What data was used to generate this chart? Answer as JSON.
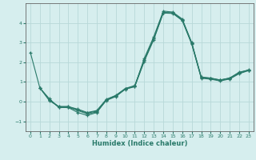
{
  "xlabel": "Humidex (Indice chaleur)",
  "bg_color": "#d6eeee",
  "line_color": "#2a7a6a",
  "grid_color": "#b8d8d8",
  "xlim": [
    -0.5,
    23.5
  ],
  "ylim": [
    -1.5,
    5.0
  ],
  "yticks": [
    -1,
    0,
    1,
    2,
    3,
    4
  ],
  "xticks": [
    0,
    1,
    2,
    3,
    4,
    5,
    6,
    7,
    8,
    9,
    10,
    11,
    12,
    13,
    14,
    15,
    16,
    17,
    18,
    19,
    20,
    21,
    22,
    23
  ],
  "tick_color": "#2a7a6a",
  "lines": [
    {
      "x": [
        0,
        1,
        2,
        3,
        4,
        5,
        6,
        7,
        8,
        9,
        10,
        11,
        12,
        13,
        14,
        15,
        16,
        17,
        18,
        19,
        20,
        21,
        22,
        23
      ],
      "y": [
        2.5,
        0.7,
        0.15,
        -0.3,
        -0.3,
        -0.55,
        -0.7,
        -0.55,
        0.08,
        0.28,
        0.65,
        0.78,
        2.2,
        3.3,
        4.6,
        4.55,
        4.2,
        3.0,
        1.25,
        1.2,
        1.1,
        1.2,
        1.5,
        1.6
      ]
    },
    {
      "x": [
        1,
        2,
        3,
        4,
        5,
        6,
        7,
        8,
        9,
        10,
        11,
        12,
        13,
        14,
        15,
        16,
        17,
        18,
        19,
        20,
        21,
        22,
        23
      ],
      "y": [
        0.7,
        0.1,
        -0.28,
        -0.28,
        -0.45,
        -0.62,
        -0.52,
        0.06,
        0.26,
        0.63,
        0.76,
        2.05,
        3.15,
        4.5,
        4.48,
        4.12,
        2.92,
        1.19,
        1.14,
        1.05,
        1.15,
        1.42,
        1.58
      ]
    },
    {
      "x": [
        1,
        2,
        3,
        4,
        5,
        6,
        7,
        8,
        9,
        10,
        11,
        12,
        13,
        14,
        15,
        16,
        17,
        18,
        19,
        20,
        21,
        22,
        23
      ],
      "y": [
        0.7,
        0.05,
        -0.25,
        -0.25,
        -0.42,
        -0.58,
        -0.48,
        0.1,
        0.3,
        0.65,
        0.8,
        2.1,
        3.2,
        4.52,
        4.5,
        4.15,
        2.95,
        1.22,
        1.17,
        1.08,
        1.18,
        1.45,
        1.6
      ]
    },
    {
      "x": [
        2,
        3,
        4,
        5,
        6,
        7,
        8,
        9,
        10,
        11,
        12,
        13,
        14,
        15,
        16,
        17,
        18,
        19,
        20,
        21,
        22,
        23
      ],
      "y": [
        0.1,
        -0.25,
        -0.25,
        -0.38,
        -0.55,
        -0.45,
        0.12,
        0.32,
        0.67,
        0.82,
        2.12,
        3.22,
        4.53,
        4.51,
        4.16,
        2.97,
        1.24,
        1.19,
        1.1,
        1.2,
        1.47,
        1.62
      ]
    }
  ]
}
